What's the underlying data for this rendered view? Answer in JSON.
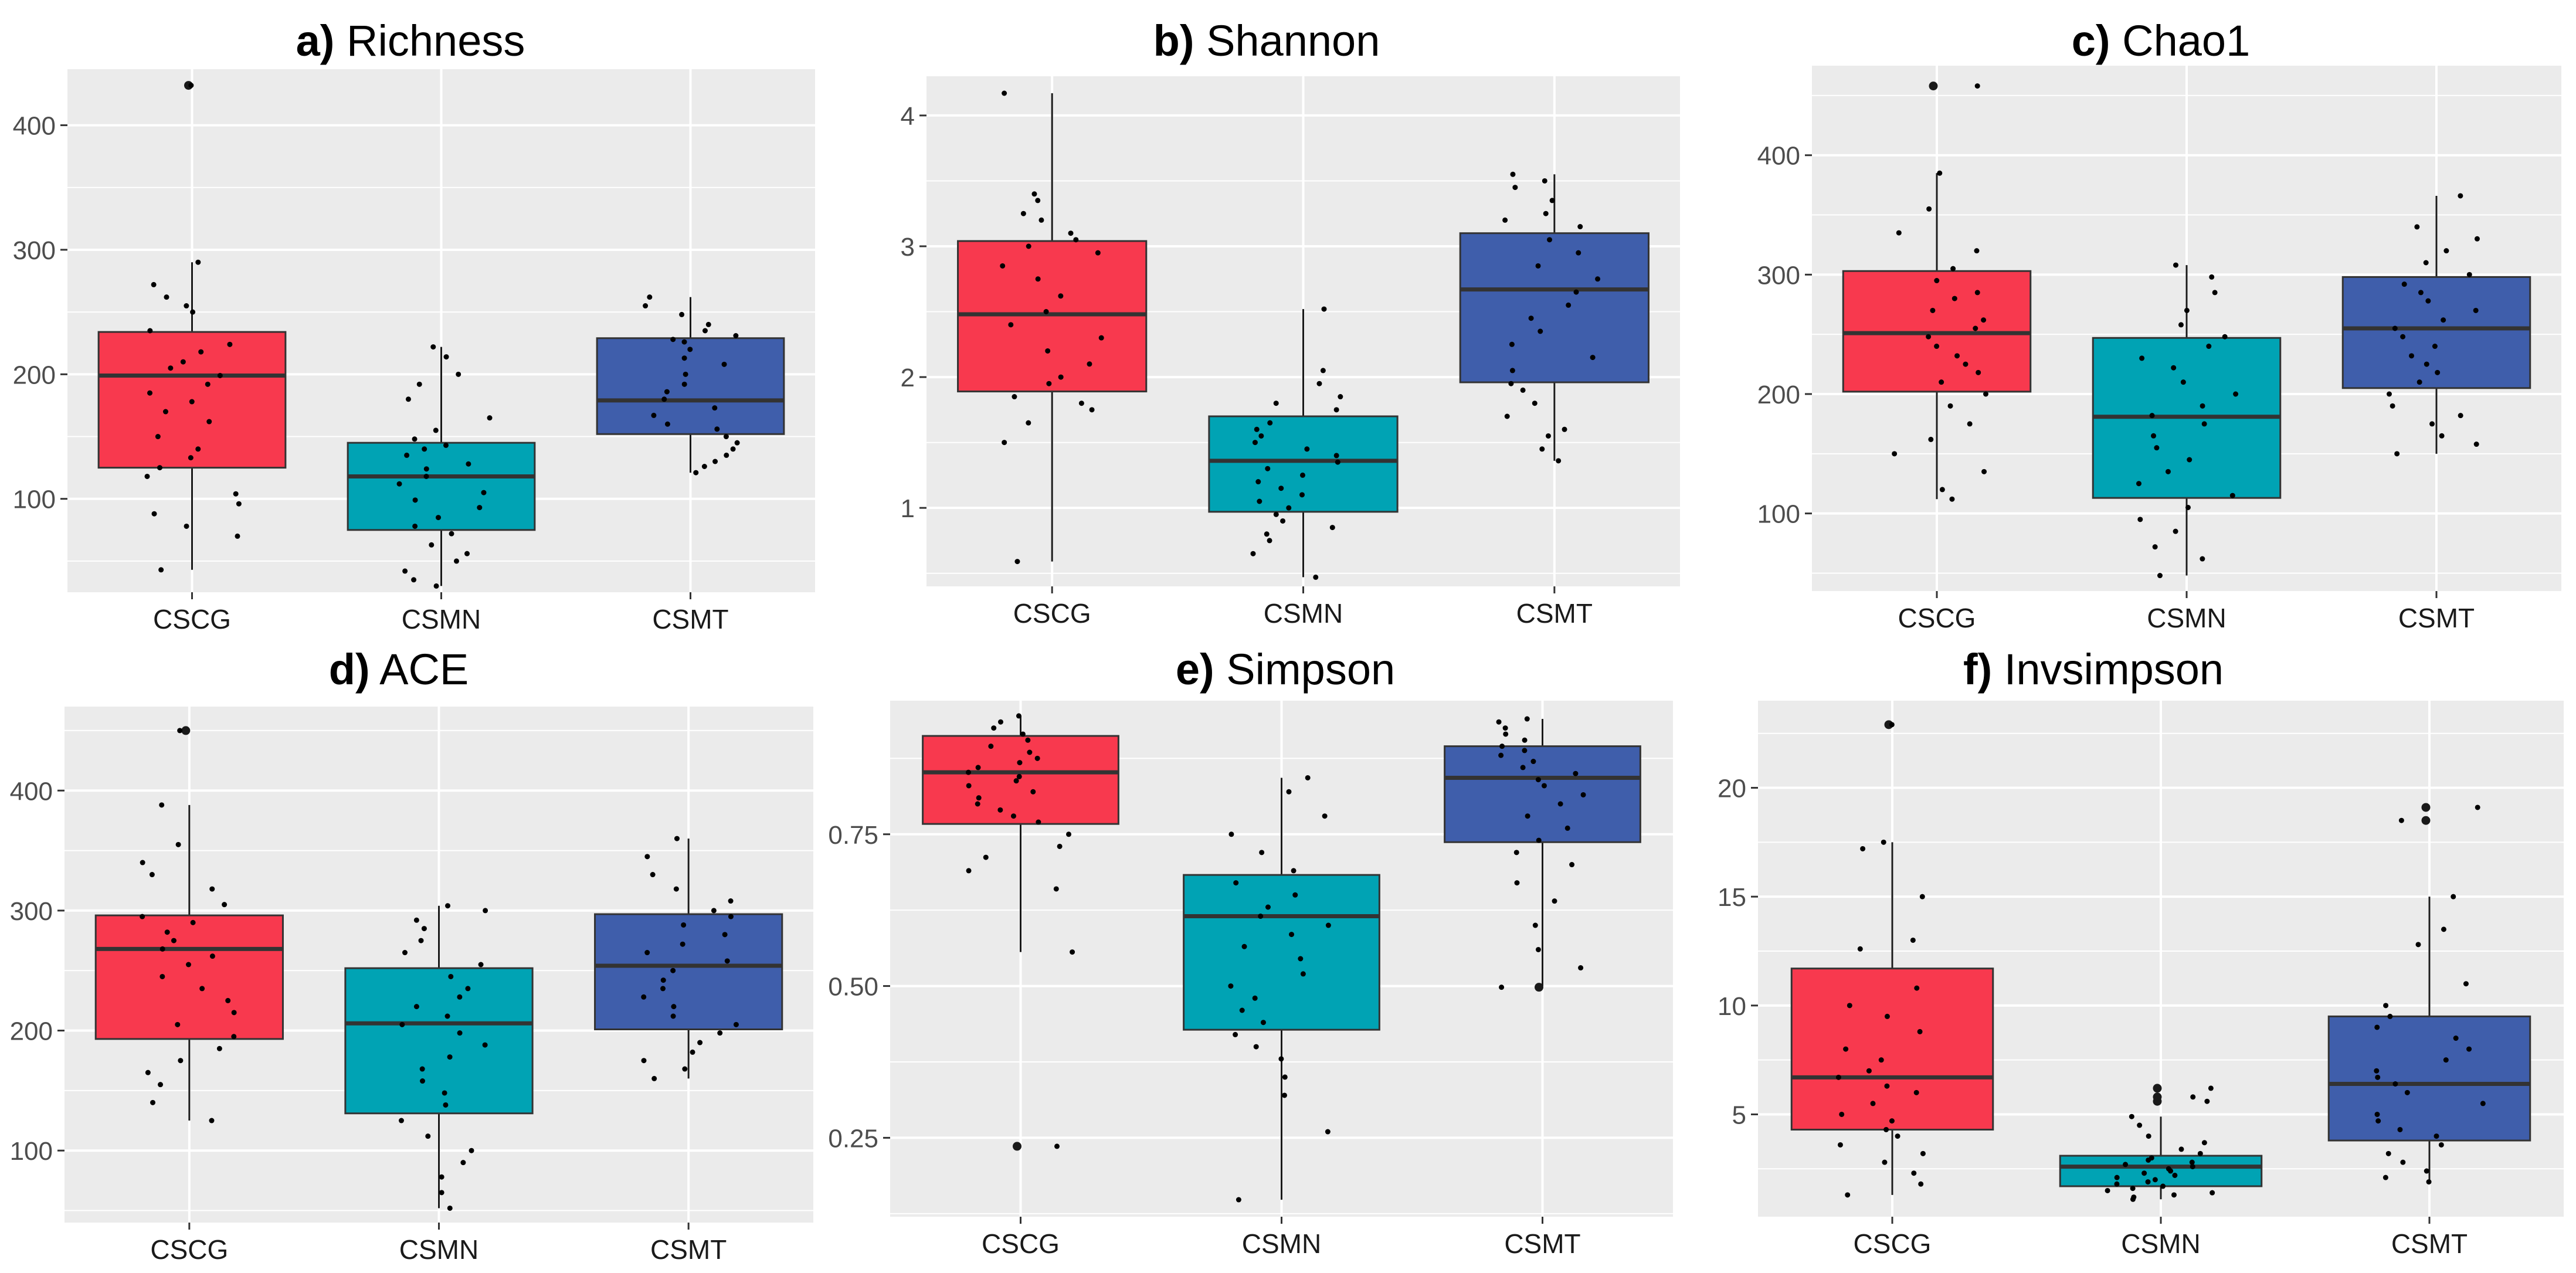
{
  "figure": {
    "background": "#ffffff"
  },
  "chart_data": [
    {
      "type": "box",
      "tag": "a)",
      "title": "Richness",
      "categories": [
        "CSCG",
        "CSMN",
        "CSMT"
      ],
      "colors": [
        "#F8394E",
        "#00A3B4",
        "#3F5EAB"
      ],
      "ylim": [
        25,
        445
      ],
      "yticks": [
        100,
        200,
        300,
        400
      ],
      "grid": true,
      "boxes": [
        {
          "q1": 125,
          "median": 199,
          "q3": 234,
          "whisker_low": 43,
          "whisker_high": 290,
          "outliers": [
            432
          ]
        },
        {
          "q1": 75,
          "median": 118,
          "q3": 145,
          "whisker_low": 30,
          "whisker_high": 222,
          "outliers": []
        },
        {
          "q1": 152,
          "median": 179,
          "q3": 229,
          "whisker_low": 121,
          "whisker_high": 262,
          "outliers": []
        }
      ],
      "points": [
        [
          432,
          290,
          272,
          262,
          255,
          250,
          235,
          224,
          218,
          210,
          205,
          199,
          192,
          185,
          178,
          170,
          162,
          150,
          140,
          133,
          125,
          118,
          104,
          96,
          88,
          78,
          70,
          43
        ],
        [
          222,
          214,
          200,
          192,
          180,
          165,
          155,
          148,
          143,
          140,
          135,
          128,
          124,
          118,
          112,
          105,
          99,
          93,
          85,
          78,
          72,
          63,
          56,
          50,
          42,
          35,
          30
        ],
        [
          262,
          255,
          248,
          240,
          235,
          231,
          228,
          226,
          220,
          213,
          208,
          200,
          192,
          186,
          180,
          173,
          167,
          160,
          156,
          150,
          145,
          140,
          135,
          130,
          126,
          121
        ]
      ]
    },
    {
      "type": "box",
      "tag": "b)",
      "title": "Shannon",
      "categories": [
        "CSCG",
        "CSMN",
        "CSMT"
      ],
      "colors": [
        "#F8394E",
        "#00A3B4",
        "#3F5EAB"
      ],
      "ylim": [
        0.4,
        4.3
      ],
      "yticks": [
        1,
        2,
        3,
        4
      ],
      "grid": true,
      "boxes": [
        {
          "q1": 1.89,
          "median": 2.48,
          "q3": 3.04,
          "whisker_low": 0.59,
          "whisker_high": 4.17,
          "outliers": []
        },
        {
          "q1": 0.97,
          "median": 1.36,
          "q3": 1.7,
          "whisker_low": 0.47,
          "whisker_high": 2.52,
          "outliers": []
        },
        {
          "q1": 1.96,
          "median": 2.67,
          "q3": 3.1,
          "whisker_low": 1.36,
          "whisker_high": 3.55,
          "outliers": []
        }
      ],
      "points": [
        [
          4.17,
          3.4,
          3.35,
          3.25,
          3.2,
          3.1,
          3.05,
          3.0,
          2.95,
          2.85,
          2.75,
          2.62,
          2.5,
          2.4,
          2.3,
          2.2,
          2.1,
          2.0,
          1.95,
          1.85,
          1.8,
          1.75,
          1.65,
          1.5,
          0.59
        ],
        [
          2.52,
          2.05,
          1.95,
          1.85,
          1.8,
          1.75,
          1.65,
          1.6,
          1.55,
          1.5,
          1.45,
          1.4,
          1.35,
          1.3,
          1.25,
          1.2,
          1.15,
          1.1,
          1.05,
          1.0,
          0.95,
          0.9,
          0.85,
          0.8,
          0.75,
          0.65,
          0.47
        ],
        [
          3.55,
          3.5,
          3.45,
          3.35,
          3.25,
          3.2,
          3.15,
          3.05,
          2.95,
          2.85,
          2.75,
          2.65,
          2.55,
          2.45,
          2.35,
          2.25,
          2.15,
          2.05,
          1.95,
          1.9,
          1.8,
          1.7,
          1.6,
          1.55,
          1.45,
          1.36
        ]
      ]
    },
    {
      "type": "box",
      "tag": "c)",
      "title": "Chao1",
      "categories": [
        "CSCG",
        "CSMN",
        "CSMT"
      ],
      "colors": [
        "#F8394E",
        "#00A3B4",
        "#3F5EAB"
      ],
      "ylim": [
        35,
        475
      ],
      "yticks": [
        100,
        200,
        300,
        400
      ],
      "grid": true,
      "boxes": [
        {
          "q1": 202,
          "median": 251,
          "q3": 303,
          "whisker_low": 112,
          "whisker_high": 385,
          "outliers": [
            458
          ]
        },
        {
          "q1": 113,
          "median": 181,
          "q3": 247,
          "whisker_low": 48,
          "whisker_high": 308,
          "outliers": []
        },
        {
          "q1": 205,
          "median": 255,
          "q3": 298,
          "whisker_low": 150,
          "whisker_high": 366,
          "outliers": []
        }
      ],
      "points": [
        [
          458,
          385,
          355,
          335,
          320,
          305,
          295,
          285,
          280,
          270,
          262,
          255,
          248,
          240,
          232,
          225,
          218,
          210,
          200,
          190,
          175,
          162,
          150,
          135,
          120,
          112
        ],
        [
          308,
          298,
          285,
          270,
          258,
          248,
          240,
          230,
          222,
          210,
          200,
          190,
          182,
          175,
          165,
          155,
          145,
          135,
          125,
          115,
          105,
          95,
          85,
          72,
          62,
          48
        ],
        [
          366,
          340,
          330,
          320,
          310,
          300,
          292,
          285,
          278,
          270,
          262,
          255,
          248,
          240,
          232,
          225,
          218,
          210,
          200,
          190,
          182,
          175,
          165,
          158,
          150
        ]
      ]
    },
    {
      "type": "box",
      "tag": "d)",
      "title": "ACE",
      "categories": [
        "CSCG",
        "CSMN",
        "CSMT"
      ],
      "colors": [
        "#F8394E",
        "#00A3B4",
        "#3F5EAB"
      ],
      "ylim": [
        40,
        470
      ],
      "yticks": [
        100,
        200,
        300,
        400
      ],
      "grid": true,
      "boxes": [
        {
          "q1": 193,
          "median": 268,
          "q3": 296,
          "whisker_low": 125,
          "whisker_high": 388,
          "outliers": [
            450
          ]
        },
        {
          "q1": 131,
          "median": 206,
          "q3": 252,
          "whisker_low": 52,
          "whisker_high": 304,
          "outliers": []
        },
        {
          "q1": 201,
          "median": 254,
          "q3": 297,
          "whisker_low": 160,
          "whisker_high": 360,
          "outliers": []
        }
      ],
      "points": [
        [
          450,
          388,
          355,
          340,
          330,
          318,
          305,
          295,
          290,
          282,
          275,
          268,
          262,
          255,
          245,
          235,
          225,
          215,
          205,
          195,
          185,
          175,
          165,
          155,
          140,
          125
        ],
        [
          304,
          300,
          292,
          285,
          275,
          265,
          255,
          245,
          235,
          228,
          220,
          212,
          205,
          198,
          188,
          178,
          168,
          158,
          148,
          138,
          125,
          112,
          100,
          90,
          78,
          65,
          52
        ],
        [
          360,
          345,
          330,
          318,
          308,
          300,
          295,
          288,
          280,
          272,
          265,
          258,
          250,
          242,
          235,
          228,
          220,
          212,
          205,
          198,
          190,
          182,
          175,
          168,
          160
        ]
      ]
    },
    {
      "type": "box",
      "tag": "e)",
      "title": "Simpson",
      "categories": [
        "CSCG",
        "CSMN",
        "CSMT"
      ],
      "colors": [
        "#F8394E",
        "#00A3B4",
        "#3F5EAB"
      ],
      "ylim": [
        0.12,
        0.97
      ],
      "yticks": [
        0.25,
        0.5,
        0.75
      ],
      "yticklabels": [
        "0.25",
        "0.50",
        "0.75"
      ],
      "grid": true,
      "boxes": [
        {
          "q1": 0.767,
          "median": 0.852,
          "q3": 0.912,
          "whisker_low": 0.556,
          "whisker_high": 0.945,
          "outliers": [
            0.236
          ]
        },
        {
          "q1": 0.428,
          "median": 0.615,
          "q3": 0.683,
          "whisker_low": 0.148,
          "whisker_high": 0.843,
          "outliers": []
        },
        {
          "q1": 0.737,
          "median": 0.843,
          "q3": 0.895,
          "whisker_low": 0.5,
          "whisker_high": 0.94,
          "outliers": [
            0.498
          ]
        }
      ],
      "points": [
        [
          0.945,
          0.935,
          0.925,
          0.915,
          0.905,
          0.895,
          0.885,
          0.875,
          0.868,
          0.86,
          0.852,
          0.845,
          0.838,
          0.83,
          0.82,
          0.81,
          0.8,
          0.79,
          0.78,
          0.77,
          0.75,
          0.73,
          0.712,
          0.69,
          0.66,
          0.556,
          0.236
        ],
        [
          0.843,
          0.82,
          0.78,
          0.75,
          0.72,
          0.69,
          0.67,
          0.65,
          0.63,
          0.615,
          0.6,
          0.585,
          0.565,
          0.545,
          0.52,
          0.5,
          0.48,
          0.46,
          0.44,
          0.42,
          0.4,
          0.38,
          0.35,
          0.32,
          0.26,
          0.148
        ],
        [
          0.94,
          0.935,
          0.925,
          0.915,
          0.905,
          0.895,
          0.888,
          0.88,
          0.87,
          0.86,
          0.85,
          0.84,
          0.83,
          0.815,
          0.8,
          0.78,
          0.76,
          0.74,
          0.72,
          0.7,
          0.67,
          0.64,
          0.6,
          0.56,
          0.53,
          0.498
        ]
      ]
    },
    {
      "type": "box",
      "tag": "f)",
      "title": "Invsimpson",
      "categories": [
        "CSCG",
        "CSMN",
        "CSMT"
      ],
      "colors": [
        "#F8394E",
        "#00A3B4",
        "#3F5EAB"
      ],
      "ylim": [
        0.3,
        24
      ],
      "yticks": [
        5,
        10,
        15,
        20
      ],
      "grid": true,
      "boxes": [
        {
          "q1": 4.3,
          "median": 6.7,
          "q3": 11.7,
          "whisker_low": 1.3,
          "whisker_high": 17.5,
          "outliers": [
            22.9
          ]
        },
        {
          "q1": 1.7,
          "median": 2.6,
          "q3": 3.1,
          "whisker_low": 1.1,
          "whisker_high": 4.9,
          "outliers": [
            6.2,
            5.8,
            5.6
          ]
        },
        {
          "q1": 3.8,
          "median": 6.4,
          "q3": 9.5,
          "whisker_low": 1.9,
          "whisker_high": 15.0,
          "outliers": [
            19.1,
            18.5
          ]
        }
      ],
      "points": [
        [
          22.9,
          17.5,
          17.2,
          15.0,
          13.0,
          12.6,
          10.8,
          10.0,
          9.5,
          8.8,
          8.0,
          7.5,
          7.0,
          6.7,
          6.3,
          6.0,
          5.5,
          5.0,
          4.7,
          4.3,
          4.0,
          3.6,
          3.2,
          2.8,
          2.3,
          1.8,
          1.3
        ],
        [
          6.2,
          5.8,
          5.6,
          4.9,
          4.5,
          4.0,
          3.7,
          3.4,
          3.2,
          3.0,
          2.9,
          2.8,
          2.7,
          2.6,
          2.5,
          2.4,
          2.3,
          2.2,
          2.1,
          2.0,
          1.9,
          1.8,
          1.7,
          1.6,
          1.5,
          1.4,
          1.3,
          1.2,
          1.1
        ],
        [
          19.1,
          18.5,
          15.0,
          13.5,
          12.8,
          11.0,
          10.0,
          9.5,
          9.0,
          8.5,
          8.0,
          7.5,
          7.0,
          6.7,
          6.4,
          6.0,
          5.5,
          5.0,
          4.7,
          4.3,
          4.0,
          3.6,
          3.2,
          2.8,
          2.4,
          2.1,
          1.9
        ]
      ]
    }
  ]
}
